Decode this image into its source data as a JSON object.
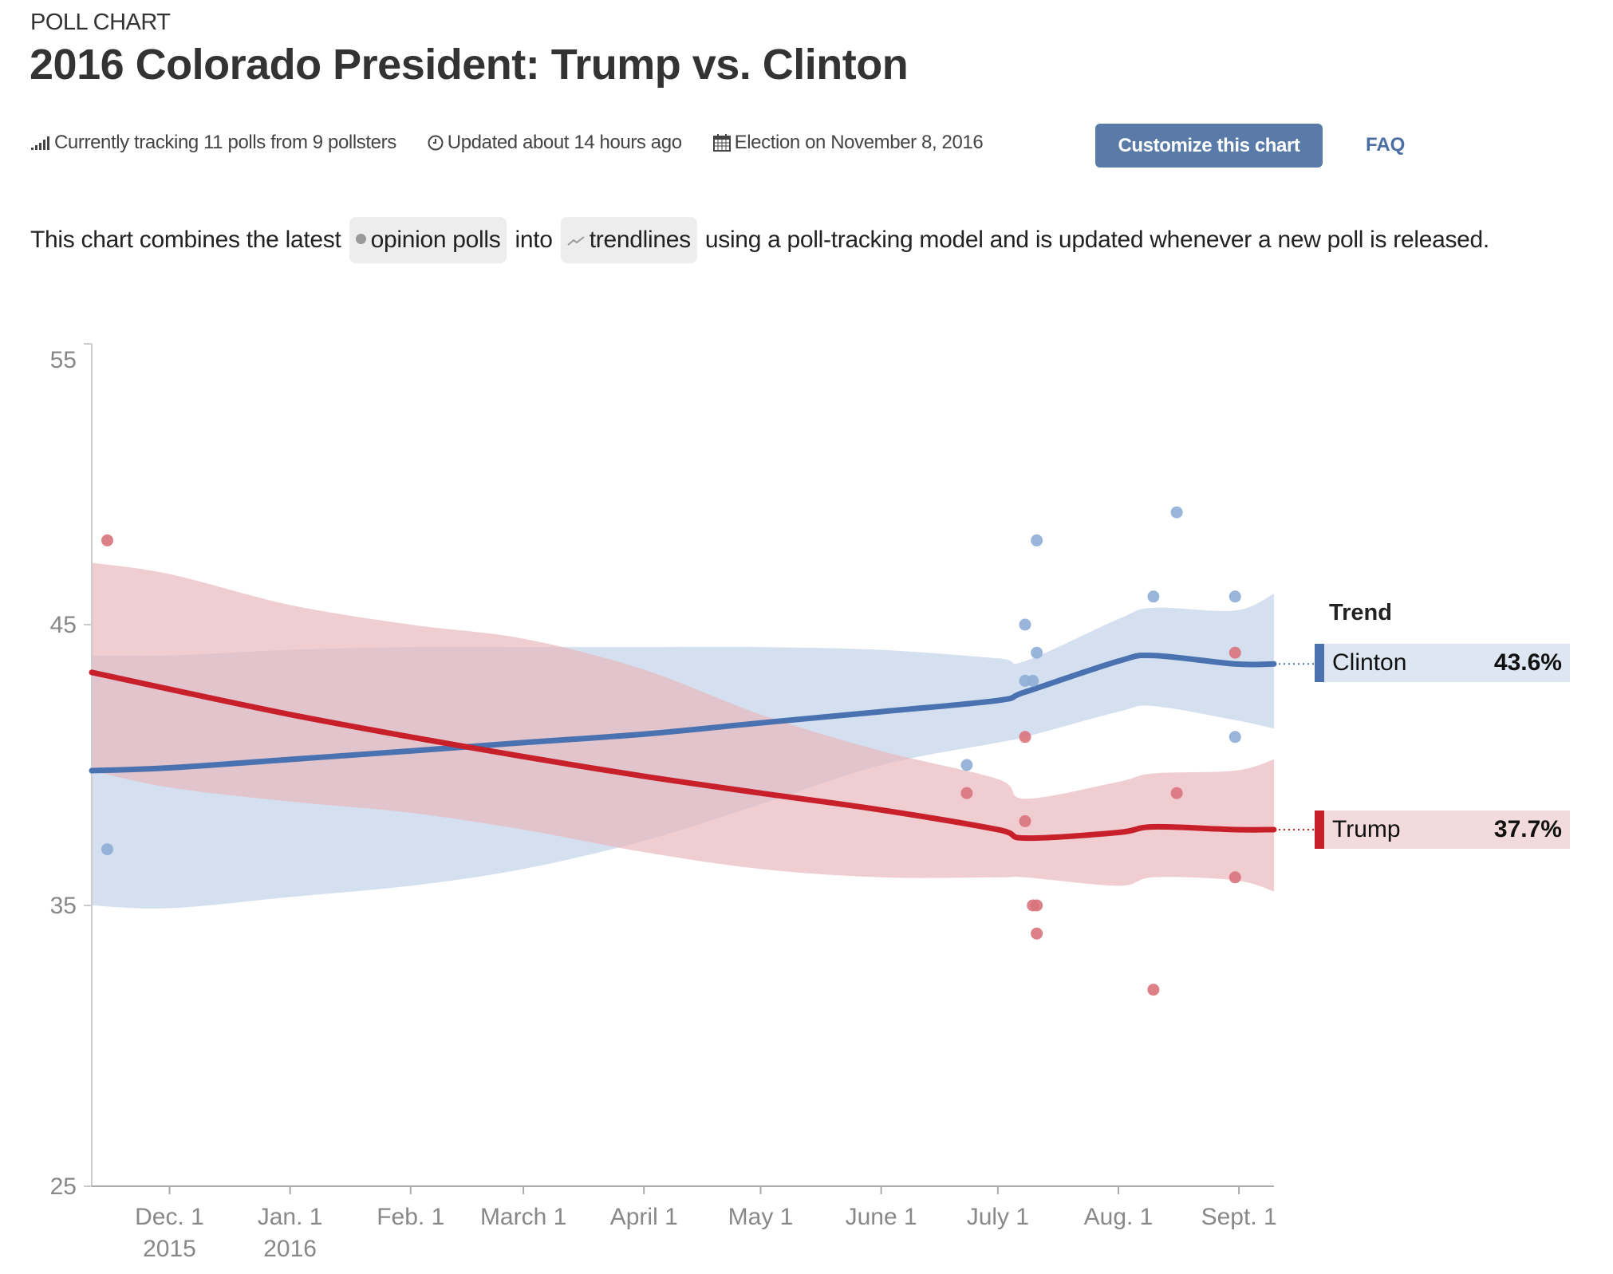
{
  "header": {
    "kicker": "POLL CHART",
    "title": "2016 Colorado President: Trump vs. Clinton"
  },
  "meta": {
    "tracking": {
      "icon": "signal-bars-icon",
      "text": "Currently tracking 11 polls from 9 pollsters"
    },
    "updated": {
      "icon": "clock-icon",
      "text": "Updated about 14 hours ago"
    },
    "election": {
      "icon": "calendar-icon",
      "text": "Election on November 8, 2016"
    },
    "customize_label": "Customize this chart",
    "faq_label": "FAQ"
  },
  "description": {
    "before": "This chart combines the latest",
    "pill_polls": "opinion polls",
    "between": "into",
    "pill_trends": "trendlines",
    "after": "using a poll-tracking model and is updated whenever a new poll is released."
  },
  "colors": {
    "clinton": "#4a72b0",
    "clinton_band": "#c5d6ea",
    "clinton_dot": "#8eaed6",
    "trump": "#c8202a",
    "trump_band": "#e8b8bd",
    "trump_dot": "#d9737c",
    "button": "#5a7ba8",
    "link": "#4a6ea3"
  },
  "chart_data": {
    "type": "line",
    "title": "2016 Colorado President: Trump vs. Clinton",
    "xlabel": "",
    "ylabel": "",
    "x_range": [
      "2015-11-11",
      "2016-09-10"
    ],
    "ylim": [
      25,
      55
    ],
    "yticks": [
      25,
      35,
      45,
      55
    ],
    "xticks": [
      {
        "date": "2015-12-01",
        "label": "Dec. 1",
        "sublabel": "2015"
      },
      {
        "date": "2016-01-01",
        "label": "Jan. 1",
        "sublabel": "2016"
      },
      {
        "date": "2016-02-01",
        "label": "Feb. 1",
        "sublabel": ""
      },
      {
        "date": "2016-03-01",
        "label": "March 1",
        "sublabel": ""
      },
      {
        "date": "2016-04-01",
        "label": "April 1",
        "sublabel": ""
      },
      {
        "date": "2016-05-01",
        "label": "May 1",
        "sublabel": ""
      },
      {
        "date": "2016-06-01",
        "label": "June 1",
        "sublabel": ""
      },
      {
        "date": "2016-07-01",
        "label": "July 1",
        "sublabel": ""
      },
      {
        "date": "2016-08-01",
        "label": "Aug. 1",
        "sublabel": ""
      },
      {
        "date": "2016-09-01",
        "label": "Sept. 1",
        "sublabel": ""
      }
    ],
    "grid": false,
    "legend": {
      "title": "Trend",
      "position": "right"
    },
    "series": [
      {
        "name": "Clinton",
        "latest": "43.6%",
        "trend": [
          [
            "2015-11-11",
            39.8
          ],
          [
            "2015-12-01",
            39.9
          ],
          [
            "2016-01-01",
            40.2
          ],
          [
            "2016-02-01",
            40.5
          ],
          [
            "2016-03-01",
            40.8
          ],
          [
            "2016-04-01",
            41.1
          ],
          [
            "2016-05-01",
            41.5
          ],
          [
            "2016-06-01",
            41.9
          ],
          [
            "2016-07-01",
            42.3
          ],
          [
            "2016-07-08",
            42.6
          ],
          [
            "2016-08-01",
            43.7
          ],
          [
            "2016-08-10",
            43.9
          ],
          [
            "2016-08-31",
            43.6
          ],
          [
            "2016-09-10",
            43.6
          ]
        ],
        "band_upper": [
          43.9,
          43.9,
          44.1,
          44.2,
          44.2,
          44.2,
          44.2,
          44.1,
          43.8,
          43.7,
          45.2,
          45.6,
          45.5,
          46.1
        ],
        "band_lower": [
          35.0,
          34.9,
          35.3,
          35.7,
          36.3,
          37.3,
          38.6,
          40.0,
          40.8,
          41.0,
          41.9,
          42.1,
          41.6,
          41.3
        ],
        "polls": [
          [
            "2015-11-15",
            37
          ],
          [
            "2016-06-23",
            40
          ],
          [
            "2016-07-08",
            45
          ],
          [
            "2016-07-08",
            43
          ],
          [
            "2016-07-10",
            43
          ],
          [
            "2016-07-11",
            44
          ],
          [
            "2016-07-11",
            48
          ],
          [
            "2016-08-10",
            46
          ],
          [
            "2016-08-16",
            49
          ],
          [
            "2016-08-31",
            46
          ],
          [
            "2016-08-31",
            41
          ]
        ]
      },
      {
        "name": "Trump",
        "latest": "37.7%",
        "trend": [
          [
            "2015-11-11",
            43.3
          ],
          [
            "2015-12-01",
            42.7
          ],
          [
            "2016-01-01",
            41.8
          ],
          [
            "2016-02-01",
            41.0
          ],
          [
            "2016-03-01",
            40.3
          ],
          [
            "2016-04-01",
            39.6
          ],
          [
            "2016-05-01",
            39.0
          ],
          [
            "2016-06-01",
            38.4
          ],
          [
            "2016-07-01",
            37.7
          ],
          [
            "2016-07-08",
            37.4
          ],
          [
            "2016-08-01",
            37.6
          ],
          [
            "2016-08-10",
            37.8
          ],
          [
            "2016-08-31",
            37.7
          ],
          [
            "2016-09-10",
            37.7
          ]
        ],
        "band_upper": [
          47.2,
          46.8,
          45.7,
          45.0,
          44.5,
          43.4,
          41.8,
          40.5,
          39.5,
          38.8,
          39.4,
          39.7,
          39.8,
          40.2
        ],
        "band_lower": [
          39.8,
          39.2,
          38.7,
          38.3,
          37.7,
          36.9,
          36.3,
          36.0,
          36.0,
          36.0,
          35.7,
          36.0,
          35.9,
          35.5
        ],
        "polls": [
          [
            "2015-11-15",
            48
          ],
          [
            "2016-06-23",
            39
          ],
          [
            "2016-07-08",
            41
          ],
          [
            "2016-07-08",
            38
          ],
          [
            "2016-07-10",
            35
          ],
          [
            "2016-07-11",
            35
          ],
          [
            "2016-07-11",
            34
          ],
          [
            "2016-08-10",
            32
          ],
          [
            "2016-08-16",
            39
          ],
          [
            "2016-08-31",
            36
          ],
          [
            "2016-08-31",
            44
          ]
        ]
      }
    ]
  }
}
